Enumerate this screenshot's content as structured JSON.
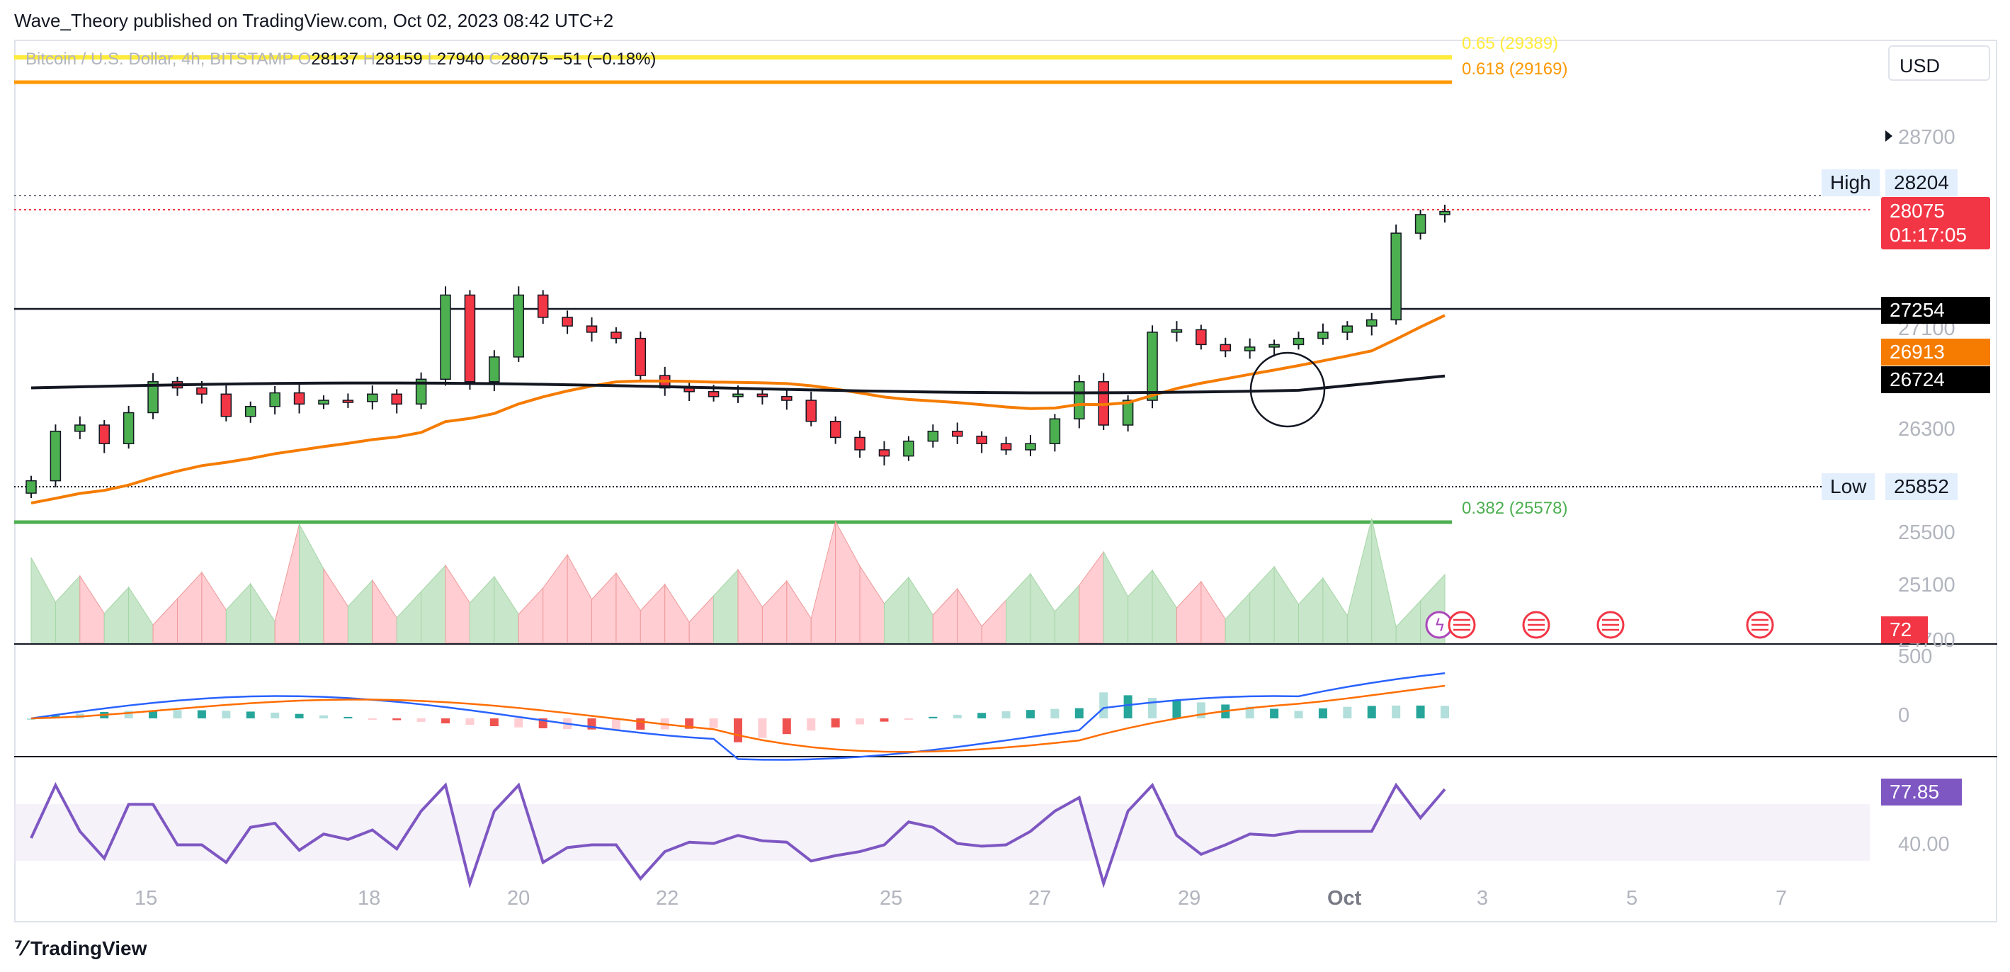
{
  "publisher": "Wave_Theory published on TradingView.com, Oct 02, 2023 08:42 UTC+2",
  "legend": {
    "symbol": "Bitcoin / U.S. Dollar, 4h, BITSTAMP",
    "o_label": "O",
    "o": "28137",
    "h_label": "H",
    "h": "28159",
    "l_label": "L",
    "l": "27940",
    "c_label": "C",
    "c": "28075",
    "change": "−51 (−0.18%)"
  },
  "currency_button": "USD",
  "fib_levels": {
    "f065": "0.65 (29389)",
    "f0618": "0.618 (29169)",
    "f0382": "0.382 (25578)"
  },
  "price_axis": {
    "p28700": "28700",
    "p27100": "27100",
    "p26300": "26300",
    "p25500": "25500",
    "p25100": "25100",
    "p24700": "24700",
    "macd_500": "500",
    "macd_0": "0",
    "rsi_40": "40.00"
  },
  "tags": {
    "high_label": "High",
    "high_value": "28204",
    "low_label": "Low",
    "low_value": "25852",
    "last_price": "28075",
    "countdown": "01:17:05",
    "support": "27254",
    "ema_orange": "26913",
    "ema_black": "26724",
    "volume": "72",
    "rsi": "77.85"
  },
  "time_axis": [
    "15",
    "18",
    "20",
    "22",
    "25",
    "27",
    "29",
    "Oct",
    "3",
    "5",
    "7"
  ],
  "footer_brand": "TradingView",
  "colors": {
    "bull": "#26a69a",
    "candle_bull": "#4caf50",
    "candle_bear": "#f23645",
    "ema_orange": "#f57c00",
    "ema_black": "#131722",
    "fib_yellow": "#ffeb3b",
    "fib_orange": "#ff9800",
    "fib_green": "#4caf50",
    "rsi": "#7e57c2",
    "macd": "#2962ff"
  },
  "chart_data": {
    "type": "candlestick",
    "symbol": "Bitcoin / U.S. Dollar",
    "interval": "4h",
    "ohlc_last": {
      "open": 28137,
      "high": 28159,
      "low": 27940,
      "close": 28075
    },
    "range_high": 28204,
    "range_low": 25852,
    "support_level": 27254,
    "ema_orange_last": 26913,
    "ema_black_last": 26724,
    "fibonacci": [
      {
        "ratio": 0.65,
        "price": 29389
      },
      {
        "ratio": 0.618,
        "price": 29169
      },
      {
        "ratio": 0.382,
        "price": 25578
      }
    ],
    "close_path": [
      25900,
      26300,
      26350,
      26200,
      26450,
      26700,
      26650,
      26600,
      26420,
      26500,
      26610,
      26520,
      26550,
      26540,
      26600,
      26520,
      26720,
      27400,
      26700,
      26900,
      27400,
      27220,
      27150,
      27100,
      27050,
      26750,
      26650,
      26620,
      26580,
      26600,
      26580,
      26550,
      26380,
      26250,
      26150,
      26100,
      26220,
      26300,
      26260,
      26200,
      26150,
      26200,
      26400,
      26700,
      26350,
      26550,
      27100,
      27120,
      27000,
      26950,
      26980,
      27000,
      27050,
      27100,
      27150,
      27200,
      27900,
      28050,
      28075
    ],
    "rsi_last": 77.85
  }
}
